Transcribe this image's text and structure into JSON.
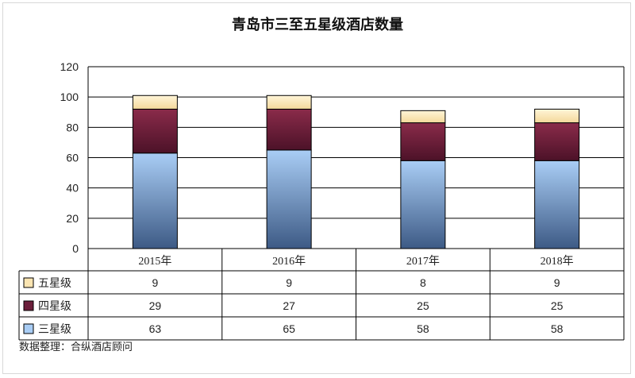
{
  "chart_data": {
    "type": "bar",
    "stacked": true,
    "title": "青岛市三至五星级酒店数量",
    "categories": [
      "2015年",
      "2016年",
      "2017年",
      "2018年"
    ],
    "series": [
      {
        "name": "三星级",
        "values": [
          63,
          65,
          58,
          58
        ],
        "color": "#6c8fbf"
      },
      {
        "name": "四星级",
        "values": [
          29,
          27,
          25,
          25
        ],
        "color": "#6b1e3a"
      },
      {
        "name": "五星级",
        "values": [
          9,
          9,
          8,
          9
        ],
        "color": "#fbe5b2"
      }
    ],
    "ylim": [
      0,
      120
    ],
    "yticks": [
      0,
      20,
      40,
      60,
      80,
      100,
      120
    ],
    "grid": true,
    "data_table": true
  },
  "footnote": "数据整理：合纵酒店顾问"
}
